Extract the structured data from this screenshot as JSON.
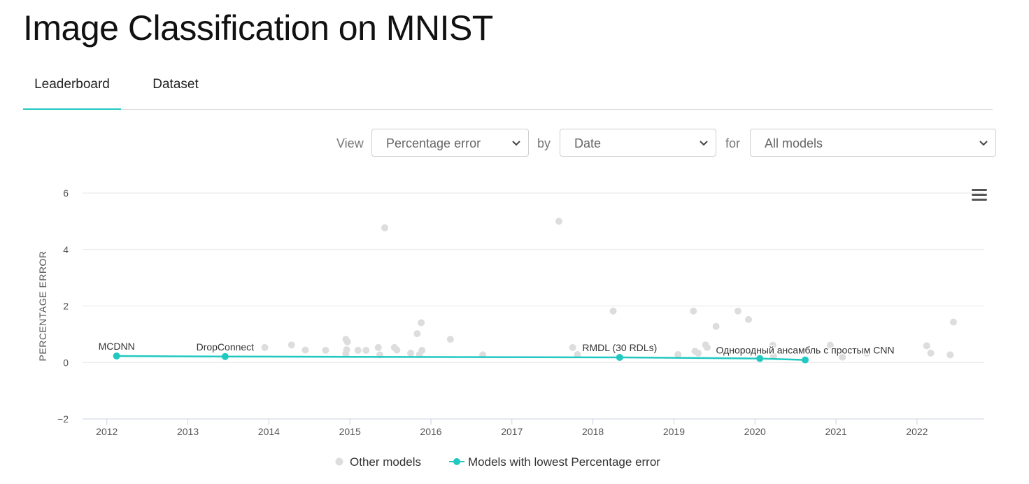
{
  "page": {
    "title": "Image Classification on MNIST"
  },
  "tabs": [
    {
      "label": "Leaderboard",
      "active": true
    },
    {
      "label": "Dataset",
      "active": false
    }
  ],
  "controls": {
    "view_label": "View",
    "view_value": "Percentage error",
    "by_label": "by",
    "by_value": "Date",
    "for_label": "for",
    "for_value": "All models"
  },
  "colors": {
    "accent": "#21c8c0",
    "other": "#dddddd",
    "grid": "#e6e6e6"
  },
  "chart_data": {
    "type": "scatter",
    "ylabel": "PERCENTAGE ERROR",
    "ylim": [
      -2,
      6
    ],
    "yticks": [
      "-2",
      "0",
      "2",
      "4",
      "6"
    ],
    "xlim": [
      2011.7,
      2022.83
    ],
    "xticks": [
      "2012",
      "2013",
      "2014",
      "2015",
      "2016",
      "2017",
      "2018",
      "2019",
      "2020",
      "2021",
      "2022"
    ],
    "series": [
      {
        "name": "Other models",
        "color": "#dddddd",
        "points": [
          [
            2013.95,
            0.53
          ],
          [
            2014.28,
            0.62
          ],
          [
            2014.45,
            0.44
          ],
          [
            2014.7,
            0.43
          ],
          [
            2014.95,
            0.82
          ],
          [
            2014.97,
            0.73
          ],
          [
            2014.96,
            0.45
          ],
          [
            2014.95,
            0.31
          ],
          [
            2015.1,
            0.43
          ],
          [
            2015.2,
            0.43
          ],
          [
            2015.35,
            0.53
          ],
          [
            2015.37,
            0.27
          ],
          [
            2015.43,
            4.77
          ],
          [
            2015.55,
            0.53
          ],
          [
            2015.58,
            0.44
          ],
          [
            2015.75,
            0.33
          ],
          [
            2015.83,
            1.02
          ],
          [
            2015.86,
            0.28
          ],
          [
            2015.88,
            1.41
          ],
          [
            2015.89,
            0.43
          ],
          [
            2016.24,
            0.82
          ],
          [
            2016.64,
            0.27
          ],
          [
            2017.58,
            5.0
          ],
          [
            2017.75,
            0.53
          ],
          [
            2017.81,
            0.28
          ],
          [
            2018.25,
            1.82
          ],
          [
            2019.05,
            0.28
          ],
          [
            2019.24,
            1.82
          ],
          [
            2019.26,
            0.4
          ],
          [
            2019.3,
            0.33
          ],
          [
            2019.39,
            0.62
          ],
          [
            2019.41,
            0.53
          ],
          [
            2019.52,
            1.28
          ],
          [
            2019.79,
            1.82
          ],
          [
            2019.92,
            1.52
          ],
          [
            2020.22,
            0.61
          ],
          [
            2020.23,
            0.22
          ],
          [
            2020.93,
            0.61
          ],
          [
            2021.08,
            0.19
          ],
          [
            2021.38,
            0.33
          ],
          [
            2022.12,
            0.59
          ],
          [
            2022.17,
            0.33
          ],
          [
            2022.41,
            0.27
          ],
          [
            2022.45,
            1.43
          ]
        ]
      },
      {
        "name": "Models with lowest Percentage error",
        "color": "#21c8c0",
        "points": [
          {
            "x": 2012.12,
            "y": 0.23,
            "label": "MCDNN"
          },
          {
            "x": 2013.46,
            "y": 0.21,
            "label": "DropConnect"
          },
          {
            "x": 2018.33,
            "y": 0.18,
            "label": "RMDL (30 RDLs)"
          },
          {
            "x": 2020.06,
            "y": 0.14,
            "label": ""
          },
          {
            "x": 2020.62,
            "y": 0.09,
            "label": "Однородный ансамбль с простым CNN"
          }
        ]
      }
    ]
  }
}
